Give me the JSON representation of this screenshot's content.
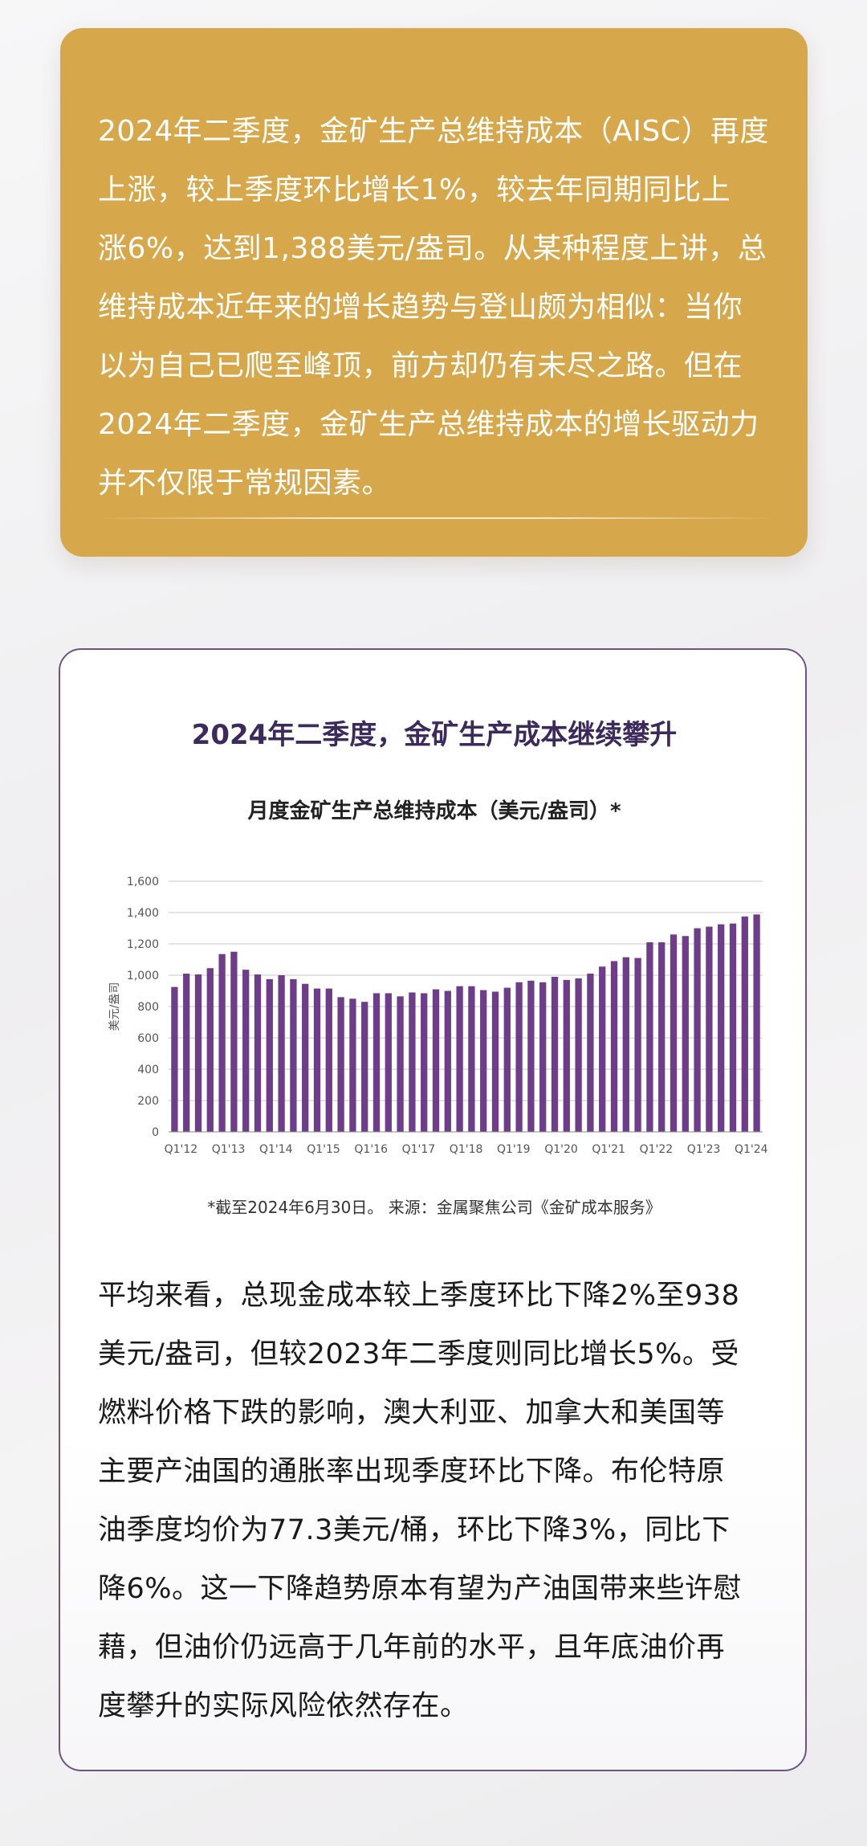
{
  "intro": {
    "text": "2024年二季度，金矿生产总维持成本（AISC）再度\n上涨，较上季度环比增长1%，较去年同期同比上\n涨6%，达到1,388美元/盎司。从某种程度上讲，总\n维持成本近年来的增长趋势与登山颇为相似：当你\n以为自己已爬至峰顶，前方却仍有未尽之路。但在\n2024年二季度，金矿生产总维持成本的增长驱动力\n并不仅限于常规因素。"
  },
  "chart_section": {
    "title": "2024年二季度，金矿生产成本继续攀升",
    "note": "*截至2024年6月30日。 来源：金属聚焦公司《金矿成本服务》"
  },
  "chart_data": {
    "type": "bar",
    "title": "月度金矿生产总维持成本（美元/盎司）*",
    "xlabel": "",
    "ylabel": "美元/盎司",
    "ylim": [
      0,
      1600
    ],
    "yticks": [
      0,
      200,
      400,
      600,
      800,
      1000,
      1200,
      1400,
      1600
    ],
    "ytick_labels": [
      "0",
      "200",
      "400",
      "600",
      "800",
      "1,000",
      "1,200",
      "1,400",
      "1,600"
    ],
    "xtick_labels": [
      "Q1'12",
      "Q1'13",
      "Q1'14",
      "Q1'15",
      "Q1'16",
      "Q1'17",
      "Q1'18",
      "Q1'19",
      "Q1'20",
      "Q1'21",
      "Q1'22",
      "Q1'23",
      "Q1'24"
    ],
    "grid": true,
    "color": "#6e3d8a",
    "categories": [
      "Q1'12",
      "Q2'12",
      "Q3'12",
      "Q4'12",
      "Q1'13",
      "Q2'13",
      "Q3'13",
      "Q4'13",
      "Q1'14",
      "Q2'14",
      "Q3'14",
      "Q4'14",
      "Q1'15",
      "Q2'15",
      "Q3'15",
      "Q4'15",
      "Q1'16",
      "Q2'16",
      "Q3'16",
      "Q4'16",
      "Q1'17",
      "Q2'17",
      "Q3'17",
      "Q4'17",
      "Q1'18",
      "Q2'18",
      "Q3'18",
      "Q4'18",
      "Q1'19",
      "Q2'19",
      "Q3'19",
      "Q4'19",
      "Q1'20",
      "Q2'20",
      "Q3'20",
      "Q4'20",
      "Q1'21",
      "Q2'21",
      "Q3'21",
      "Q4'21",
      "Q1'22",
      "Q2'22",
      "Q3'22",
      "Q4'22",
      "Q1'23",
      "Q2'23",
      "Q3'23",
      "Q4'23",
      "Q1'24",
      "Q2'24"
    ],
    "values": [
      925,
      1010,
      1005,
      1045,
      1135,
      1150,
      1035,
      1005,
      975,
      1000,
      975,
      945,
      915,
      915,
      860,
      850,
      830,
      885,
      885,
      865,
      890,
      885,
      910,
      900,
      930,
      930,
      905,
      895,
      920,
      955,
      965,
      955,
      990,
      970,
      980,
      1010,
      1055,
      1090,
      1115,
      1110,
      1210,
      1210,
      1260,
      1250,
      1300,
      1310,
      1325,
      1330,
      1375,
      1388
    ]
  },
  "body": {
    "text": "平均来看，总现金成本较上季度环比下降2%至938\n美元/盎司，但较2023年二季度则同比增长5%。受\n燃料价格下跌的影响，澳大利亚、加拿大和美国等\n主要产油国的通胀率出现季度环比下降。布伦特原\n油季度均价为77.3美元/桶，环比下降3%，同比下\n降6%。这一下降趋势原本有望为产油国带来些许慰\n藉，但油价仍远高于几年前的水平，且年底油价再\n度攀升的实际风险依然存在。"
  }
}
